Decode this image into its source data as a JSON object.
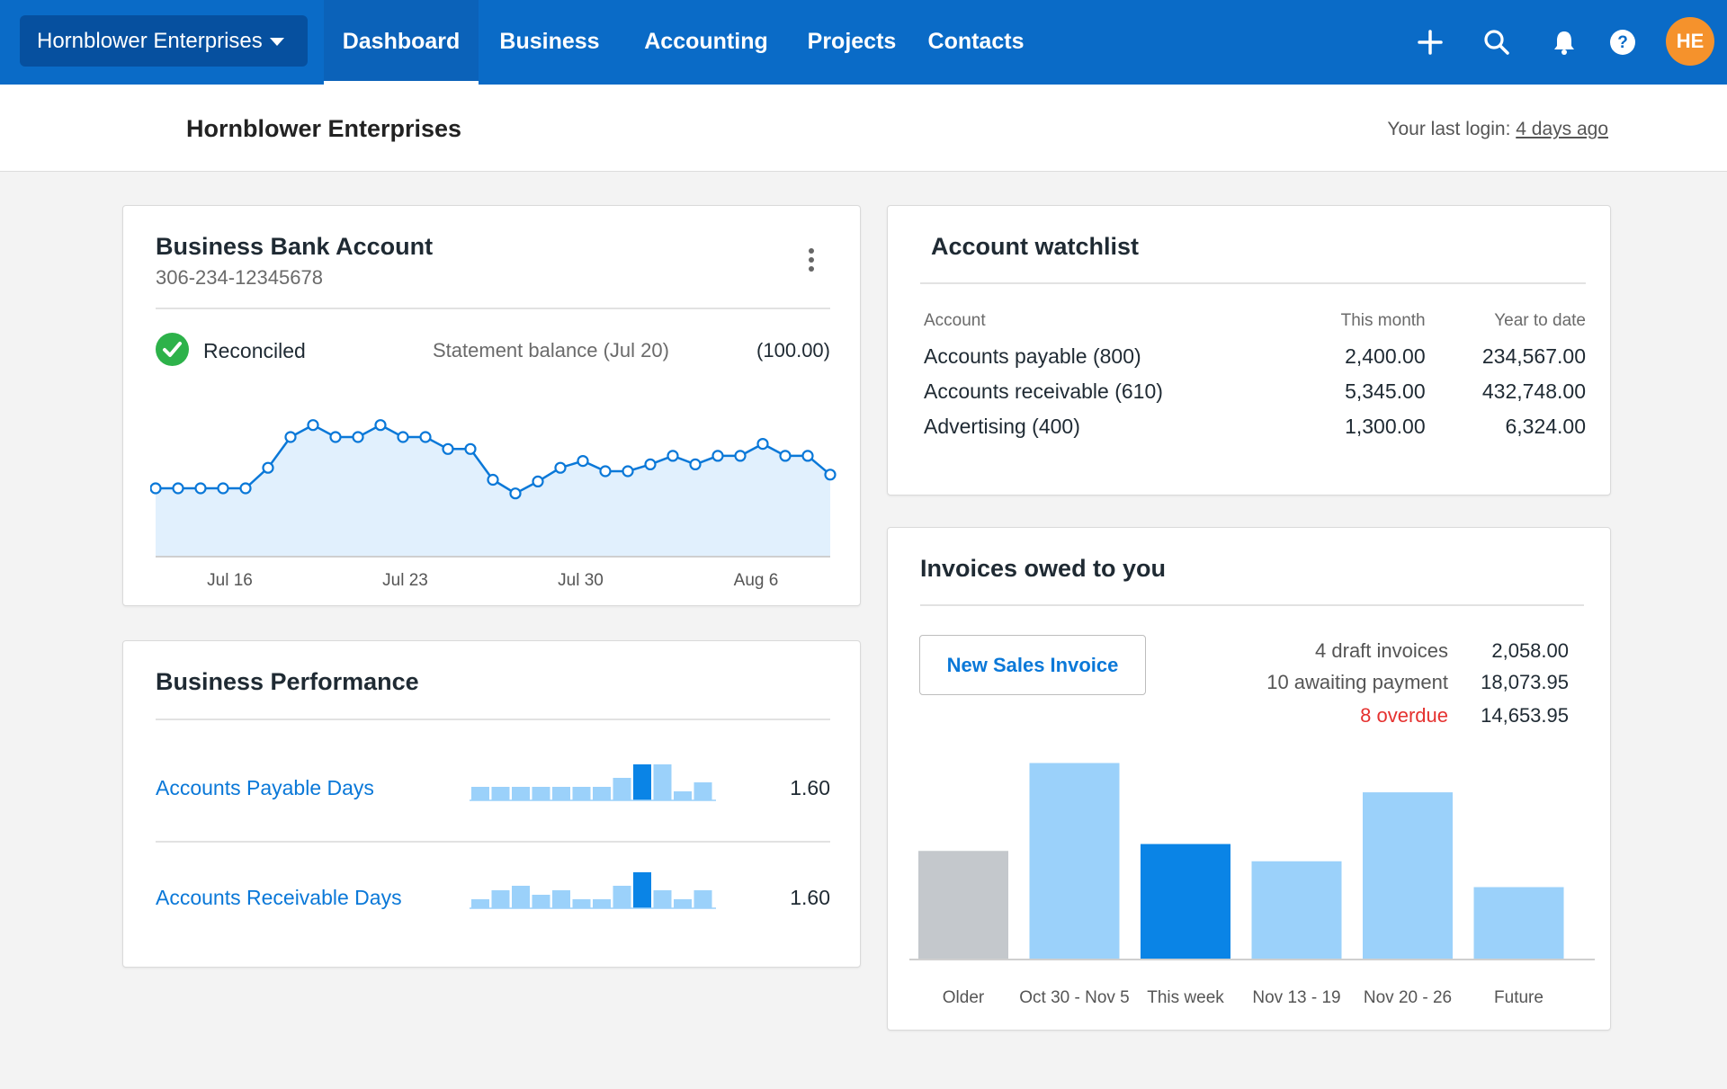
{
  "nav": {
    "org_switcher": "Hornblower Enterprises",
    "tabs": [
      {
        "label": "Dashboard"
      },
      {
        "label": "Business"
      },
      {
        "label": "Accounting"
      },
      {
        "label": "Projects"
      },
      {
        "label": "Contacts"
      }
    ],
    "icons": [
      "plus-icon",
      "search-icon",
      "bell-icon",
      "help-icon"
    ],
    "avatar_initials": "HE"
  },
  "subheader": {
    "title": "Hornblower Enterprises",
    "last_login_label": "Your last login:",
    "last_login_value": "4 days ago"
  },
  "bank": {
    "title": "Business Bank Account",
    "account_number": "306-234-12345678",
    "status": "Reconciled",
    "statement_label": "Statement balance (Jul 20)",
    "statement_value": "(100.00)",
    "chart_data": {
      "type": "area",
      "values": [
        40,
        40,
        40,
        40,
        40,
        52,
        70,
        77,
        70,
        70,
        77,
        70,
        70,
        63,
        63,
        45,
        37,
        44,
        52,
        56,
        50,
        50,
        54,
        59,
        54,
        59,
        59,
        66,
        59,
        59,
        48
      ],
      "tick_labels": [
        "Jul 16",
        "Jul 23",
        "Jul 30",
        "Aug 6"
      ],
      "tick_index": [
        3.3,
        11.1,
        18.9,
        26.7
      ],
      "ylim": [
        0,
        100
      ],
      "color": "#0a78d8",
      "fill": "#e1f0fd"
    }
  },
  "performance": {
    "title": "Business Performance",
    "rows": [
      {
        "label": "Accounts Payable Days",
        "value": "1.60",
        "bars": [
          3,
          3,
          3,
          3,
          3,
          3,
          3,
          5,
          8,
          8,
          2,
          4
        ],
        "highlight": 8
      },
      {
        "label": "Accounts Receivable Days",
        "value": "1.60",
        "bars": [
          2,
          4,
          5,
          3,
          4,
          2,
          2,
          5,
          8,
          4,
          2,
          4
        ],
        "highlight": 8
      }
    ]
  },
  "watchlist": {
    "title": "Account watchlist",
    "columns": [
      "Account",
      "This month",
      "Year to date"
    ],
    "rows": [
      [
        "Accounts payable (800)",
        "2,400.00",
        "234,567.00"
      ],
      [
        "Accounts receivable (610)",
        "5,345.00",
        "432,748.00"
      ],
      [
        "Advertising (400)",
        "1,300.00",
        "6,324.00"
      ]
    ]
  },
  "invoices": {
    "title": "Invoices owed to you",
    "new_button": "New Sales Invoice",
    "summary": [
      {
        "label": "4 draft invoices",
        "value": "2,058.00",
        "color": "#555555"
      },
      {
        "label": "10 awaiting payment",
        "value": "18,073.95",
        "color": "#555555"
      },
      {
        "label": "8 overdue",
        "value": "14,653.95",
        "color": "#e5312f"
      }
    ],
    "chart_data": {
      "type": "bar",
      "categories": [
        "Older",
        "Oct 30 - Nov 5",
        "This week",
        "Nov 13 - 19",
        "Nov 20 - 26",
        "Future"
      ],
      "values": [
        126,
        228,
        134,
        114,
        194,
        84
      ],
      "colors": [
        "#c4c8cc",
        "#9bd1fa",
        "#0a84e6",
        "#9bd1fa",
        "#9bd1fa",
        "#9bd1fa"
      ],
      "ylim": [
        0,
        240
      ]
    }
  }
}
